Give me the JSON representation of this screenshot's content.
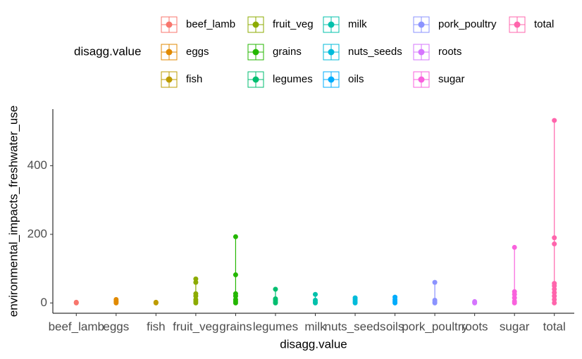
{
  "chart_data": {
    "type": "violin",
    "x_label": "disagg.value",
    "y_label": "environmental_impacts_freshwater_use",
    "legend_title": "disagg.value",
    "ylim": [
      -30,
      565
    ],
    "yticks": [
      0,
      200,
      400
    ],
    "series": [
      {
        "name": "beef_lamb",
        "color": "#F8766D",
        "values": [
          0,
          1,
          2
        ]
      },
      {
        "name": "eggs",
        "color": "#E18A00",
        "values": [
          0,
          3,
          6,
          10
        ]
      },
      {
        "name": "fish",
        "color": "#BE9C00",
        "values": [
          0,
          1,
          2
        ]
      },
      {
        "name": "fruit_veg",
        "color": "#8CAB00",
        "values": [
          0,
          5,
          10,
          20,
          27,
          60,
          70
        ]
      },
      {
        "name": "grains",
        "color": "#24B700",
        "values": [
          0,
          5,
          10,
          20,
          27,
          82,
          193
        ]
      },
      {
        "name": "legumes",
        "color": "#00BE70",
        "values": [
          0,
          3,
          8,
          12,
          40
        ]
      },
      {
        "name": "milk",
        "color": "#00C1AB",
        "values": [
          0,
          3,
          8,
          25
        ]
      },
      {
        "name": "nuts_seeds",
        "color": "#00BBDA",
        "values": [
          0,
          5,
          10,
          15
        ]
      },
      {
        "name": "oils",
        "color": "#00ACFC",
        "values": [
          0,
          5,
          10,
          17
        ]
      },
      {
        "name": "pork_poultry",
        "color": "#8B93FF",
        "values": [
          0,
          3,
          8,
          60
        ]
      },
      {
        "name": "roots",
        "color": "#D575FE",
        "values": [
          0,
          2,
          4
        ]
      },
      {
        "name": "sugar",
        "color": "#F962DD",
        "values": [
          0,
          5,
          15,
          25,
          33,
          162
        ]
      },
      {
        "name": "total",
        "color": "#FF65AC",
        "values": [
          0,
          10,
          20,
          30,
          40,
          50,
          57,
          172,
          190,
          532
        ]
      }
    ]
  }
}
